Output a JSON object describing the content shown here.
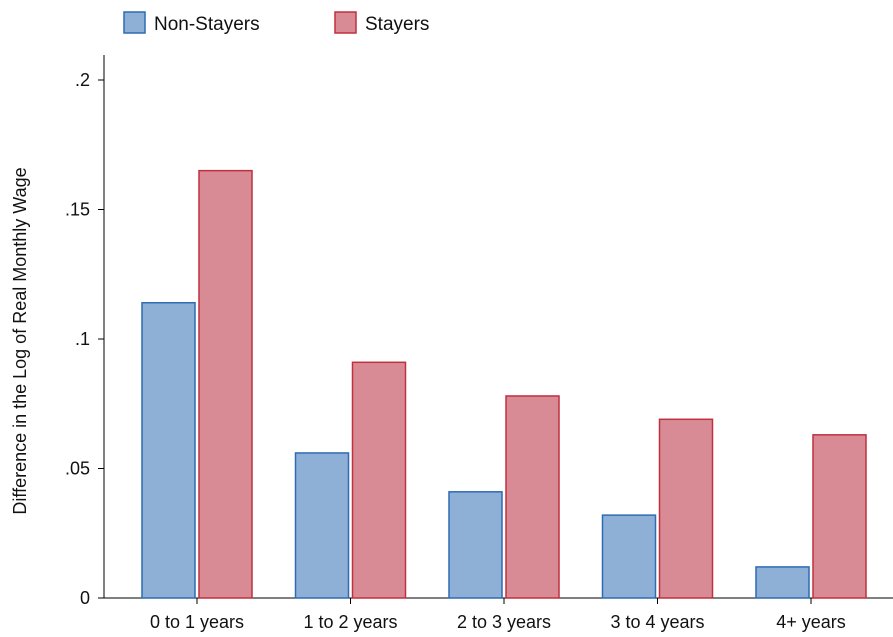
{
  "chart_data": {
    "type": "bar",
    "title": "",
    "xlabel": "",
    "ylabel": "Difference in the Log of Real Monthly Wage",
    "categories": [
      "0 to 1 years",
      "1 to 2 years",
      "2 to 3 years",
      "3 to 4 years",
      "4+ years"
    ],
    "series": [
      {
        "name": "Non-Stayers",
        "values": [
          0.114,
          0.056,
          0.041,
          0.032,
          0.012
        ],
        "fill": "#8fb0d6",
        "stroke": "#2f6bb3"
      },
      {
        "name": "Stayers",
        "values": [
          0.165,
          0.091,
          0.078,
          0.069,
          0.063
        ],
        "fill": "#d98b95",
        "stroke": "#c0303f"
      }
    ],
    "ylim": [
      0,
      0.2
    ],
    "yticks": [
      0,
      0.05,
      0.1,
      0.15,
      0.2
    ],
    "ytick_labels": [
      "0",
      ".05",
      ".1",
      ".15",
      ".2"
    ],
    "grid": false,
    "legend": {
      "position": "top-left",
      "orientation": "horizontal"
    }
  }
}
